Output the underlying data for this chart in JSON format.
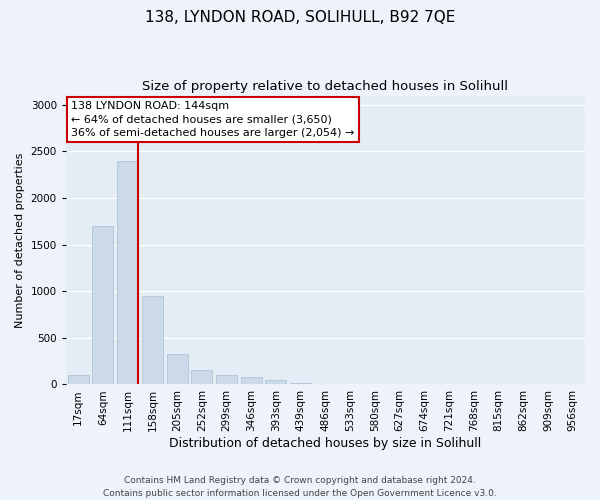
{
  "title": "138, LYNDON ROAD, SOLIHULL, B92 7QE",
  "subtitle": "Size of property relative to detached houses in Solihull",
  "xlabel": "Distribution of detached houses by size in Solihull",
  "ylabel": "Number of detached properties",
  "footer_line1": "Contains HM Land Registry data © Crown copyright and database right 2024.",
  "footer_line2": "Contains public sector information licensed under the Open Government Licence v3.0.",
  "bar_labels": [
    "17sqm",
    "64sqm",
    "111sqm",
    "158sqm",
    "205sqm",
    "252sqm",
    "299sqm",
    "346sqm",
    "393sqm",
    "439sqm",
    "486sqm",
    "533sqm",
    "580sqm",
    "627sqm",
    "674sqm",
    "721sqm",
    "768sqm",
    "815sqm",
    "862sqm",
    "909sqm",
    "956sqm"
  ],
  "bar_values": [
    100,
    1700,
    2400,
    950,
    330,
    150,
    100,
    80,
    50,
    20,
    0,
    0,
    0,
    10,
    0,
    0,
    0,
    0,
    0,
    0,
    0
  ],
  "bar_color": "#ccd9e8",
  "bar_edgecolor": "#a8bfd4",
  "vline_color": "#cc0000",
  "vline_x_index": 2,
  "annotation_text": "138 LYNDON ROAD: 144sqm\n← 64% of detached houses are smaller (3,650)\n36% of semi-detached houses are larger (2,054) →",
  "annotation_box_edgecolor": "#cc0000",
  "ylim": [
    0,
    3100
  ],
  "yticks": [
    0,
    500,
    1000,
    1500,
    2000,
    2500,
    3000
  ],
  "bg_color": "#eef2fa",
  "plot_bg_color": "#e4ecf5",
  "grid_color": "#ffffff",
  "title_fontsize": 11,
  "subtitle_fontsize": 9.5,
  "xlabel_fontsize": 9,
  "ylabel_fontsize": 8,
  "tick_fontsize": 7.5,
  "annotation_fontsize": 8,
  "footer_fontsize": 6.5
}
